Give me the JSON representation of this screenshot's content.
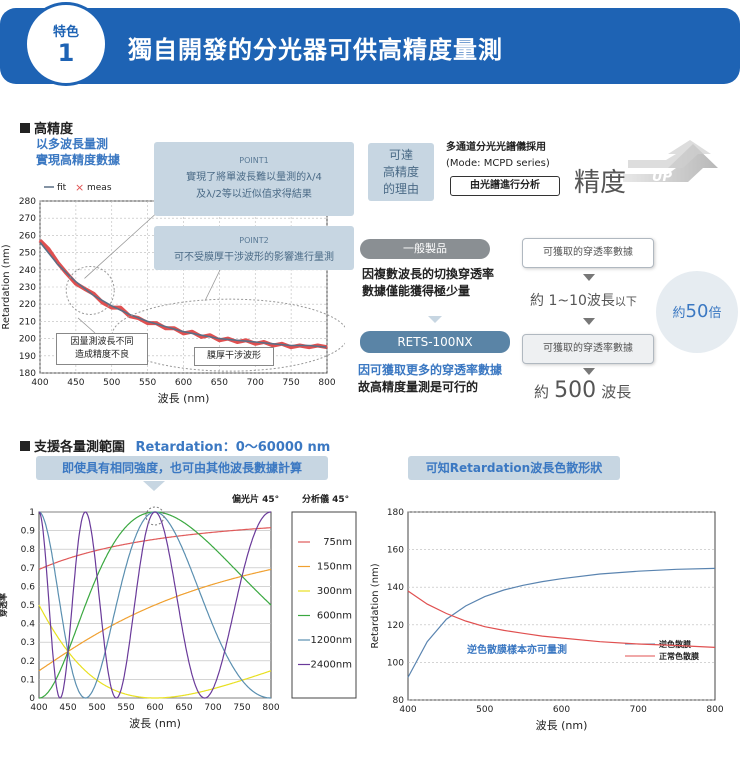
{
  "header": {
    "badge_top": "特色",
    "badge_num": "1",
    "title": "獨自開發的分光器可供高精度量測"
  },
  "section1": {
    "title": "高精度",
    "subtitle_line1": "以多波長量測",
    "subtitle_line2": "實現高精度數據",
    "point1_label": "POINT1",
    "point1_line1": "實現了將單波長難以量測的λ/4",
    "point1_line2": "及λ/2等以近似值求得結果",
    "point2_label": "POINT2",
    "point2_text": "可不受膜厚干涉波形的影響進行量測",
    "label_bad": "因量測波長不同\n造成精度不良",
    "label_bad_1": "因量測波長不同",
    "label_bad_2": "造成精度不良",
    "label_interf": "膜厚干涉波形",
    "reason_1": "可達",
    "reason_2": "高精度",
    "reason_3": "的理由",
    "spectro_1": "多通道分光光譜儀採用",
    "spectro_2": "(Mode: MCPD series)",
    "spectro_btn": "由光譜進行分析",
    "precision": "精度",
    "up": "UP",
    "general": "一般製品",
    "general_desc_1": "因複數波長的切換穿透率",
    "general_desc_2": "數據僅能獲得極少量",
    "rets": "RETS-100NX",
    "rets_desc_1": "因可獲取更多的穿透率數據",
    "rets_desc_2": "故高精度量測是可行的",
    "box_a": "可獲取的穿透率數據",
    "box_b": "可獲取的穿透率數據",
    "wl_few": "約 1~10波長",
    "wl_few_suffix": "以下",
    "wl_many_pre": "約",
    "wl_many_num": "500",
    "wl_many_suffix": "波長",
    "times_pre": "約",
    "times_num": "50",
    "times_suffix": "倍"
  },
  "section2": {
    "title": "支援各量測範圍",
    "range": "Retardation：0～60000 nm",
    "sub_left": "即使具有相同強度，也可由其他波長數據計算",
    "sub_right": "可知Retardation波長色散形狀",
    "polarizer": "偏光片 45°",
    "analyzer": "分析儀 45°"
  },
  "chart_data": [
    {
      "type": "line",
      "title": "",
      "xlabel": "波長 (nm)",
      "ylabel": "Retardation (nm)",
      "xlim": [
        400,
        800
      ],
      "ylim": [
        180,
        280
      ],
      "xticks": [
        400,
        450,
        500,
        550,
        600,
        650,
        700,
        750,
        800
      ],
      "yticks": [
        180,
        190,
        200,
        210,
        220,
        230,
        240,
        250,
        260,
        270,
        280
      ],
      "legend": [
        {
          "name": "fit",
          "marker": "—"
        },
        {
          "name": "meas",
          "marker": "×"
        }
      ],
      "series": [
        {
          "name": "fit",
          "color": "#5a6f86",
          "x": [
            400,
            425,
            450,
            475,
            500,
            525,
            550,
            575,
            600,
            625,
            650,
            675,
            700,
            725,
            750,
            775,
            800
          ],
          "y": [
            256,
            243,
            233,
            225,
            219,
            214,
            210,
            207,
            204,
            202,
            200,
            199,
            198,
            197,
            196,
            196,
            195
          ]
        },
        {
          "name": "meas",
          "color": "#e05050",
          "x": [
            400,
            412,
            425,
            437,
            450,
            462,
            475,
            487,
            500,
            512,
            525,
            537,
            550,
            562,
            575,
            587,
            600,
            612,
            625,
            637,
            650,
            662,
            675,
            687,
            700,
            712,
            725,
            737,
            750,
            762,
            775,
            787,
            800
          ],
          "y": [
            257,
            252,
            244,
            238,
            232,
            229,
            226,
            221,
            218,
            218,
            213,
            212,
            209,
            209,
            206,
            206,
            203,
            204,
            201,
            202,
            199,
            200,
            198,
            199,
            197,
            198,
            196,
            197,
            195,
            196,
            195,
            196,
            195
          ]
        }
      ]
    },
    {
      "type": "line",
      "title": "",
      "xlabel": "波長 (nm)",
      "ylabel": "穿透率",
      "xlim": [
        400,
        800
      ],
      "ylim": [
        0,
        1
      ],
      "xticks": [
        400,
        450,
        500,
        550,
        600,
        650,
        700,
        750,
        800
      ],
      "yticks": [
        0,
        0.1,
        0.2,
        0.3,
        0.4,
        0.5,
        0.6,
        0.7,
        0.8,
        0.9,
        1
      ],
      "yticklabels": [
        "0",
        "0.1",
        "0.2",
        "0.3",
        "0.4",
        "0.5",
        "0.6",
        "0.7",
        "0.8",
        "0.9",
        "1"
      ],
      "legend_position": "right",
      "series": [
        {
          "name": "75nm",
          "retardation": 75,
          "color": "#e05a5a"
        },
        {
          "name": "150nm",
          "retardation": 150,
          "color": "#f0a030"
        },
        {
          "name": "300nm",
          "retardation": 300,
          "color": "#e8e020"
        },
        {
          "name": "600nm",
          "retardation": 600,
          "color": "#3aa840"
        },
        {
          "name": "1200nm",
          "retardation": 1200,
          "color": "#5a8fb0"
        },
        {
          "name": "2400nm",
          "retardation": 2400,
          "color": "#6a3a9a"
        }
      ]
    },
    {
      "type": "line",
      "title": "",
      "xlabel": "波長 (nm)",
      "ylabel": "Retardation (nm)",
      "xlim": [
        400,
        800
      ],
      "ylim": [
        80,
        180
      ],
      "xticks": [
        400,
        500,
        600,
        700,
        800
      ],
      "yticks": [
        80,
        100,
        120,
        140,
        160,
        180
      ],
      "annotation": "逆色散膜樣本亦可量測",
      "legend_position": "right",
      "series": [
        {
          "name": "逆色散膜",
          "color": "#5a84b0",
          "x": [
            400,
            425,
            450,
            475,
            500,
            525,
            550,
            575,
            600,
            650,
            700,
            750,
            800
          ],
          "y": [
            92,
            111,
            123,
            130,
            135,
            138.5,
            141,
            143,
            144.5,
            147,
            148.5,
            149.5,
            150
          ]
        },
        {
          "name": "正常色散膜",
          "color": "#e05050",
          "x": [
            400,
            425,
            450,
            475,
            500,
            525,
            550,
            575,
            600,
            650,
            700,
            750,
            800
          ],
          "y": [
            138,
            131,
            126,
            122,
            119,
            117,
            115.5,
            114,
            113,
            111,
            109.8,
            109,
            108
          ]
        }
      ]
    }
  ]
}
